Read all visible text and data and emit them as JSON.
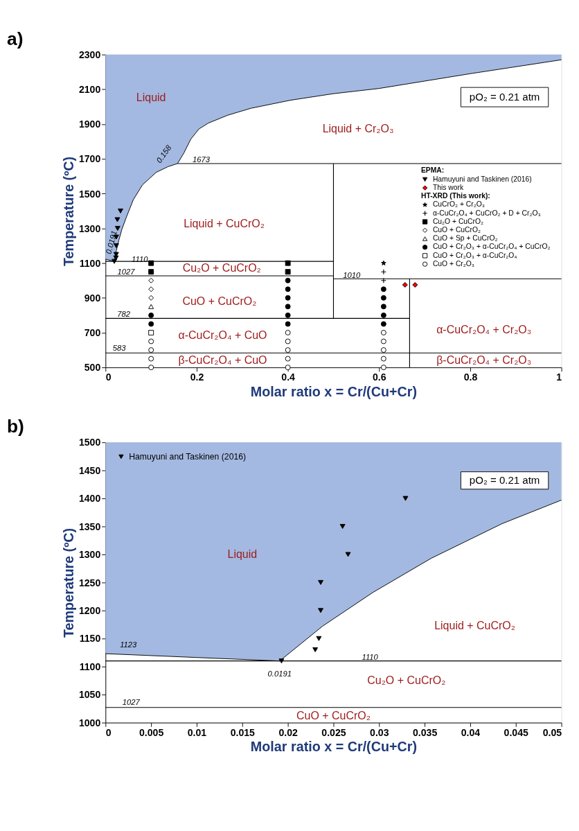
{
  "chart_data": [
    {
      "type": "scatter",
      "title": "a)",
      "xlabel": "Molar ratio x = Cr/(Cu+Cr)",
      "ylabel": "Temperature (ºC)",
      "xlim": [
        0,
        1
      ],
      "ylim": [
        500,
        2300
      ],
      "xticks": [
        0,
        0.2,
        0.4,
        0.6,
        0.8,
        1
      ],
      "yticks": [
        500,
        700,
        900,
        1100,
        1300,
        1500,
        1700,
        1900,
        2100,
        2300
      ],
      "grid": false,
      "legend": "right",
      "legend_title": "EPMA:",
      "series": [
        {
          "type": "line",
          "color": "#000000",
          "x": [
            0,
            0.0191,
            0.0238,
            0.0293,
            0.0357,
            0.046,
            0.061,
            0.081,
            0.111,
            0.137,
            0.158,
            0.172,
            0.187,
            0.205,
            0.225,
            0.268,
            0.319,
            0.405,
            0.5,
            0.6,
            0.8,
            1
          ],
          "values": [
            1123,
            1110,
            1172,
            1232,
            1293,
            1366,
            1465,
            1550,
            1622,
            1655,
            1673,
            1734,
            1813,
            1872,
            1905,
            1951,
            1991,
            2037,
            2075,
            2105,
            2190,
            2270
          ],
          "lower": [
            1123,
            1110,
            1172,
            1232,
            1293,
            1366,
            1465,
            1550,
            1622,
            1655,
            1673,
            1734,
            1813,
            1872,
            1905,
            1951,
            1991,
            2037,
            2075,
            2105,
            2190,
            2270
          ],
          "upper": [
            2300,
            2300,
            2300,
            2300,
            2300,
            2300,
            2300,
            2300,
            2300,
            2300,
            2300,
            2300,
            2300,
            2300,
            2300,
            2300,
            2300,
            2300,
            2300,
            2300,
            2300,
            2300
          ]
        },
        {
          "type": "line",
          "color": "#000000",
          "x": [
            0.158,
            1
          ],
          "values": [
            1673,
            1673
          ]
        },
        {
          "type": "line",
          "color": "#000000",
          "x": [
            0,
            0.5
          ],
          "values": [
            1110,
            1110
          ]
        },
        {
          "type": "line",
          "color": "#000000",
          "x": [
            0,
            0.5
          ],
          "values": [
            1027,
            1027
          ]
        },
        {
          "type": "line",
          "color": "#000000",
          "x": [
            0,
            0.667
          ],
          "values": [
            782,
            782
          ]
        },
        {
          "type": "line",
          "color": "#000000",
          "x": [
            0,
            1
          ],
          "values": [
            583,
            583
          ]
        },
        {
          "type": "line",
          "color": "#000000",
          "x": [
            0.5,
            1
          ],
          "values": [
            1010,
            1010
          ]
        },
        {
          "type": "line",
          "color": "#000000",
          "x": [
            0.5,
            0.5
          ],
          "values": [
            782,
            1673
          ]
        },
        {
          "type": "line",
          "color": "#000000",
          "x": [
            0.667,
            0.667
          ],
          "values": [
            500,
            1010
          ]
        },
        {
          "name": "Hamuyuni and Taskinen (2016)",
          "marker": "triangle-down",
          "color": "#000000",
          "x": [
            0.0193,
            0.023,
            0.0234,
            0.0236,
            0.0236,
            0.0266,
            0.026,
            0.0329
          ],
          "values": [
            1110,
            1130,
            1150,
            1200,
            1250,
            1300,
            1350,
            1400
          ]
        },
        {
          "name": "This work",
          "marker": "diamond",
          "color": "#ff0000",
          "x": [
            0.657,
            0.679
          ],
          "values": [
            975,
            975
          ]
        },
        {
          "name": "CuCrO₂ + Cr₂O₃",
          "marker": "star",
          "color": "#000000",
          "x": [
            0.61
          ],
          "values": [
            1100
          ]
        },
        {
          "name": "α-CuCr₂O₄ + CuCrO₂ + D + Cr₂O₃",
          "marker": "cross",
          "color": "#000000",
          "x": [
            0.61,
            0.61
          ],
          "values": [
            1050,
            1000
          ]
        },
        {
          "name": "Cu₂O + CuCrO₂",
          "marker": "square",
          "color": "#000000",
          "x": [
            0.1,
            0.1,
            0.4,
            0.4
          ],
          "values": [
            1100,
            1050,
            1100,
            1050
          ]
        },
        {
          "name": "CuO + CuCrO₂",
          "marker": "diamond",
          "color": "#ffffff",
          "x": [
            0.1,
            0.1,
            0.1
          ],
          "values": [
            1000,
            950,
            900
          ]
        },
        {
          "name": "CuO + Sp + CuCrO₂",
          "marker": "triangle",
          "color": "#ffffff",
          "x": [
            0.1
          ],
          "values": [
            850
          ]
        },
        {
          "name": "CuO + Cr₂O₃ + α-CuCr₂O₄ + CuCrO₂",
          "marker": "circle",
          "color": "#000000",
          "x": [
            0.1,
            0.1,
            0.4,
            0.4,
            0.4,
            0.4,
            0.4,
            0.4,
            0.61,
            0.61,
            0.61,
            0.61,
            0.61
          ],
          "values": [
            800,
            750,
            1000,
            950,
            900,
            850,
            800,
            750,
            950,
            900,
            850,
            800,
            750
          ]
        },
        {
          "name": "CuO + Cr₂O₃ + α-CuCr₂O₄",
          "marker": "square",
          "color": "#ffffff",
          "x": [
            0.1
          ],
          "values": [
            700
          ]
        },
        {
          "name": "CuO + Cr₂O₃",
          "marker": "circle",
          "color": "#ffffff",
          "x": [
            0.1,
            0.1,
            0.1,
            0.1,
            0.4,
            0.4,
            0.4,
            0.4,
            0.4,
            0.61,
            0.61,
            0.61,
            0.61,
            0.61
          ],
          "values": [
            650,
            600,
            550,
            500,
            700,
            650,
            600,
            550,
            500,
            700,
            650,
            600,
            550,
            500
          ]
        }
      ],
      "annotations": [
        "pO₂ = 0.21 atm",
        "HT-XRD (This work):",
        "Liquid",
        "Liquid + Cr₂O₃",
        "Liquid + CuCrO₂",
        "Cu₂O + CuCrO₂",
        "CuO + CuCrO₂",
        "α-CuCr₂O₄ + CuO",
        "β-CuCr₂O₄ + CuO",
        "α-CuCr₂O₄ + Cr₂O₃",
        "β-CuCr₂O₄ + Cr₂O₃",
        "0.158",
        "1673",
        "0.0191",
        "1110",
        "1027",
        "782",
        "583",
        "1010"
      ]
    },
    {
      "type": "scatter",
      "title": "b)",
      "xlabel": "Molar ratio x = Cr/(Cu+Cr)",
      "ylabel": "Temperature (ºC)",
      "xlim": [
        0,
        0.05
      ],
      "ylim": [
        1000,
        1500
      ],
      "xticks": [
        0,
        0.005,
        0.01,
        0.015,
        0.02,
        0.025,
        0.03,
        0.035,
        0.04,
        0.045,
        0.05
      ],
      "yticks": [
        1000,
        1050,
        1100,
        1150,
        1200,
        1250,
        1300,
        1350,
        1400,
        1450,
        1500
      ],
      "grid": false,
      "legend": "top left",
      "series": [
        {
          "type": "line",
          "color": "#000000",
          "x": [
            0,
            0.0191,
            0.0238,
            0.0293,
            0.0357,
            0.0435,
            0.05
          ],
          "values": [
            1123,
            1110,
            1172,
            1232,
            1293,
            1355,
            1397
          ],
          "lower": [
            1123,
            1110,
            1172,
            1232,
            1293,
            1355,
            1397
          ],
          "upper": [
            1500,
            1500,
            1500,
            1500,
            1500,
            1500,
            1500
          ]
        },
        {
          "type": "line",
          "color": "#000000",
          "x": [
            0,
            0.05
          ],
          "values": [
            1110,
            1110
          ]
        },
        {
          "type": "line",
          "color": "#000000",
          "x": [
            0,
            0.05
          ],
          "values": [
            1027,
            1027
          ]
        },
        {
          "name": "Hamuyuni and Taskinen (2016)",
          "marker": "triangle-down",
          "color": "#000000",
          "x": [
            0.0193,
            0.023,
            0.0234,
            0.0236,
            0.0236,
            0.0266,
            0.026,
            0.0329
          ],
          "values": [
            1110,
            1130,
            1150,
            1200,
            1250,
            1300,
            1350,
            1400
          ]
        }
      ],
      "annotations": [
        "pO₂ = 0.21 atm",
        "Liquid",
        "Liquid + CuCrO₂",
        "Cu₂O + CuCrO₂",
        "CuO + CuCrO₂",
        "1123",
        "0.0191",
        "1110",
        "1027"
      ]
    }
  ]
}
